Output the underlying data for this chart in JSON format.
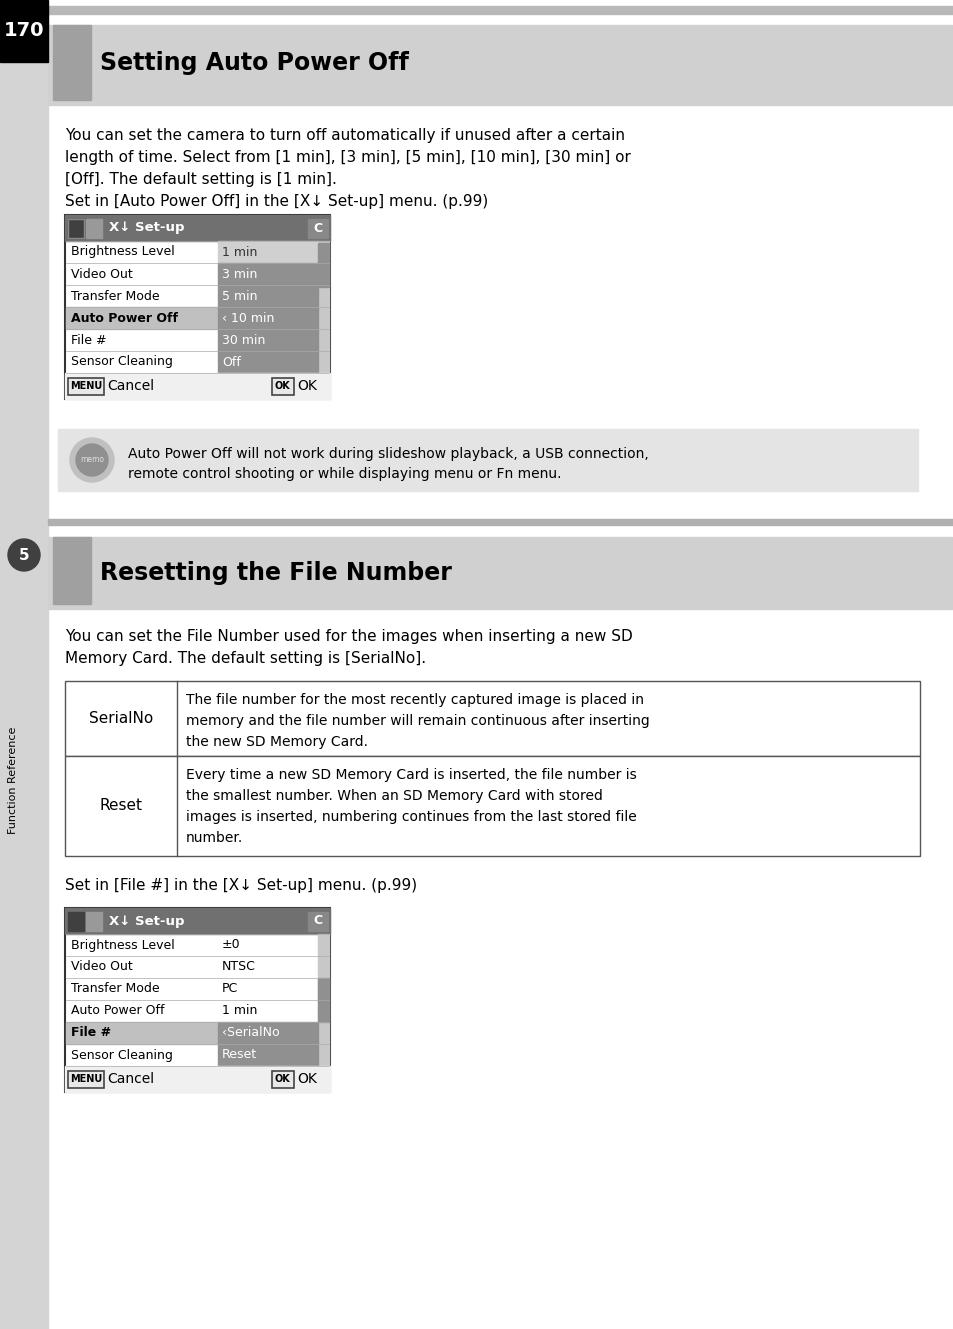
{
  "page_number": "170",
  "bg_color": "#ffffff",
  "section1_title": "Setting Auto Power Off",
  "section1_body1": "You can set the camera to turn off automatically if unused after a certain",
  "section1_body2": "length of time. Select from [1 min], [3 min], [5 min], [10 min], [30 min] or",
  "section1_body3": "[Off]. The default setting is [1 min].",
  "section1_body4": "Set in [Auto Power Off] in the [X↓ Set-up] menu. (p.99)",
  "menu1_title": "X↓ Set-up",
  "menu1_rows": [
    [
      "Brightness Level",
      "1 min"
    ],
    [
      "Video Out",
      "3 min"
    ],
    [
      "Transfer Mode",
      "5 min"
    ],
    [
      "Auto Power Off",
      "‹ 10 min"
    ],
    [
      "File #",
      "30 min"
    ],
    [
      "Sensor Cleaning",
      "Off"
    ]
  ],
  "menu1_highlighted_row": 3,
  "memo_text1": "Auto Power Off will not work during slideshow playback, a USB connection,",
  "memo_text2": "remote control shooting or while displaying menu or Fn menu.",
  "section2_title": "Resetting the File Number",
  "section2_body1": "You can set the File Number used for the images when inserting a new SD",
  "section2_body2": "Memory Card. The default setting is [SerialNo].",
  "table_data": [
    {
      "label": "SerialNo",
      "lines": [
        "The file number for the most recently captured image is placed in",
        "memory and the file number will remain continuous after inserting",
        "the new SD Memory Card."
      ]
    },
    {
      "label": "Reset",
      "lines": [
        "Every time a new SD Memory Card is inserted, the file number is",
        "the smallest number. When an SD Memory Card with stored",
        "images is inserted, numbering continues from the last stored file",
        "number."
      ]
    }
  ],
  "section2_body3": "Set in [File #] in the [X↓ Set-up] menu. (p.99)",
  "menu2_title": "X↓ Set-up",
  "menu2_rows": [
    [
      "Brightness Level",
      "±0",
      false
    ],
    [
      "Video Out",
      "NTSC",
      false
    ],
    [
      "Transfer Mode",
      "PC",
      false
    ],
    [
      "Auto Power Off",
      "1 min",
      false
    ],
    [
      "File #",
      "‹SerialNo",
      true
    ],
    [
      "Sensor Cleaning",
      "Reset",
      true
    ]
  ],
  "menu2_highlighted_row": 4,
  "sidebar_label": "Function Reference",
  "sidebar_number": "5"
}
